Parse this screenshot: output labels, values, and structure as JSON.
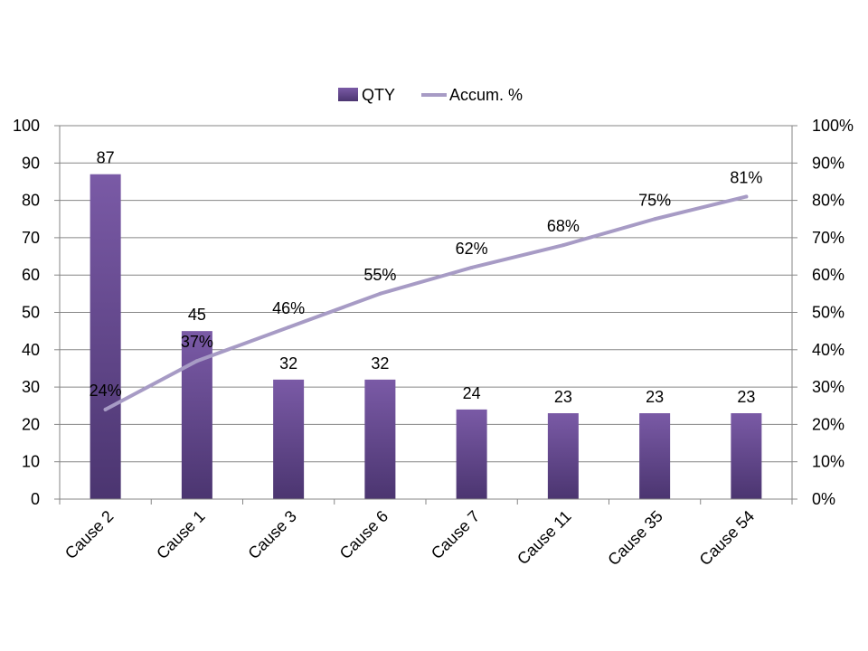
{
  "chart_data": {
    "type": "bar",
    "categories": [
      "Cause 2",
      "Cause 1",
      "Cause 3",
      "Cause 6",
      "Cause 7",
      "Cause 11",
      "Cause 35",
      "Cause 54"
    ],
    "series": [
      {
        "name": "QTY",
        "type": "bar",
        "axis": "left",
        "values": [
          87,
          45,
          32,
          32,
          24,
          23,
          23,
          23
        ],
        "labels": [
          "87",
          "45",
          "32",
          "32",
          "24",
          "23",
          "23",
          "23"
        ]
      },
      {
        "name": "Accum. %",
        "type": "line",
        "axis": "right",
        "values": [
          24,
          37,
          46,
          55,
          62,
          68,
          75,
          81
        ],
        "labels": [
          "24%",
          "37%",
          "46%",
          "55%",
          "62%",
          "68%",
          "75%",
          "81%"
        ]
      }
    ],
    "y_left": {
      "range": [
        0,
        100
      ],
      "ticks": [
        "0",
        "10",
        "20",
        "30",
        "40",
        "50",
        "60",
        "70",
        "80",
        "90",
        "100"
      ]
    },
    "y_right": {
      "range": [
        0,
        100
      ],
      "ticks": [
        "0%",
        "10%",
        "20%",
        "30%",
        "40%",
        "50%",
        "60%",
        "70%",
        "80%",
        "90%",
        "100%"
      ]
    },
    "grid": true,
    "legend": "top-center",
    "colors": {
      "bar_top": "#7a5aa6",
      "bar_bottom": "#4b3570",
      "line": "#a79bc5",
      "grid": "#868686"
    }
  }
}
